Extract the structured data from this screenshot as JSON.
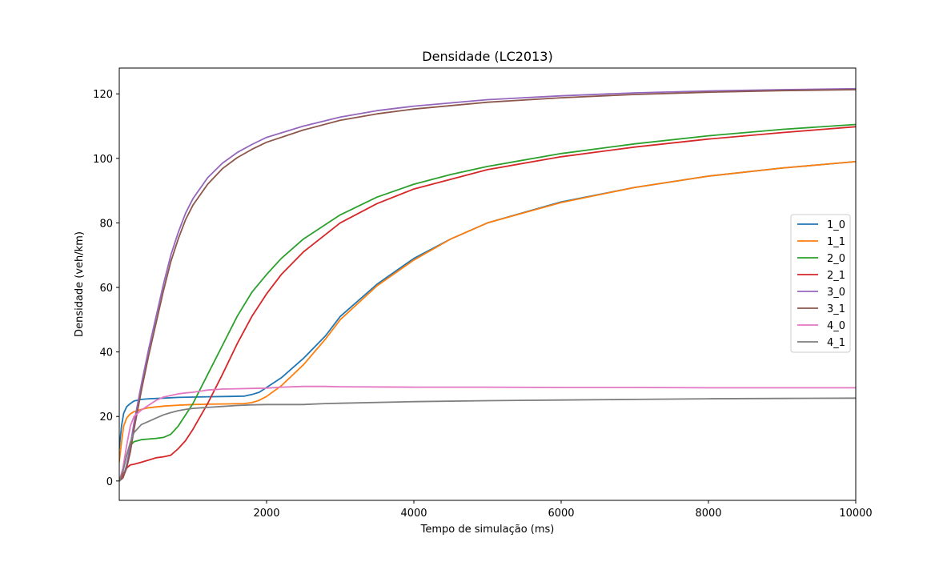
{
  "chart_data": {
    "type": "line",
    "title": "Densidade (LC2013)",
    "xlabel": "Tempo de simulação (ms)",
    "ylabel": "Densidade (veh/km)",
    "xlim": [
      0,
      10000
    ],
    "ylim": [
      -6,
      128
    ],
    "xticks": [
      2000,
      4000,
      6000,
      8000,
      10000
    ],
    "xtick_labels": [
      "2000",
      "4000",
      "6000",
      "8000",
      "10000"
    ],
    "yticks": [
      0,
      20,
      40,
      60,
      80,
      100,
      120
    ],
    "ytick_labels": [
      "0",
      "20",
      "40",
      "60",
      "80",
      "100",
      "120"
    ],
    "grid": false,
    "legend_position": "center-right",
    "series": [
      {
        "name": "1_0",
        "color": "#1f77b4",
        "x": [
          0,
          30,
          60,
          100,
          150,
          200,
          300,
          400,
          600,
          800,
          1000,
          1200,
          1500,
          1700,
          1800,
          1900,
          2000,
          2200,
          2500,
          2800,
          3000,
          3500,
          4000,
          4500,
          5000,
          6000,
          7000,
          8000,
          9000,
          10000
        ],
        "y": [
          10,
          17,
          21,
          23,
          24,
          24.8,
          25.3,
          25.5,
          25.7,
          25.9,
          26,
          26.1,
          26.2,
          26.3,
          26.8,
          27.5,
          29,
          32,
          38,
          45,
          51,
          61,
          69,
          75,
          80,
          86.5,
          91,
          94.5,
          97,
          99
        ]
      },
      {
        "name": "1_1",
        "color": "#ff7f0e",
        "x": [
          0,
          30,
          60,
          100,
          150,
          200,
          300,
          400,
          600,
          800,
          1000,
          1200,
          1500,
          1700,
          1800,
          1900,
          2000,
          2200,
          2500,
          2800,
          3000,
          3500,
          4000,
          4500,
          5000,
          6000,
          7000,
          8000,
          9000,
          10000
        ],
        "y": [
          6,
          12,
          17,
          19.5,
          20.8,
          21.5,
          22.2,
          22.7,
          23.2,
          23.5,
          23.7,
          23.8,
          23.9,
          24,
          24.3,
          25,
          26.2,
          29.5,
          36,
          44,
          50,
          60.5,
          68.5,
          75,
          80,
          86.3,
          91,
          94.5,
          97,
          99
        ]
      },
      {
        "name": "2_0",
        "color": "#2ca02c",
        "x": [
          0,
          50,
          100,
          150,
          200,
          300,
          400,
          500,
          600,
          700,
          800,
          900,
          1000,
          1200,
          1400,
          1600,
          1800,
          2000,
          2200,
          2500,
          3000,
          3500,
          4000,
          4500,
          5000,
          6000,
          7000,
          8000,
          9000,
          10000
        ],
        "y": [
          0,
          3,
          8,
          11,
          12.2,
          12.8,
          13,
          13.2,
          13.5,
          14.5,
          17,
          20.5,
          24,
          33,
          42,
          51,
          58.5,
          64,
          69,
          75,
          82.5,
          88,
          92,
          95,
          97.5,
          101.5,
          104.5,
          107,
          109,
          110.5
        ]
      },
      {
        "name": "2_1",
        "color": "#d62728",
        "x": [
          0,
          50,
          100,
          150,
          200,
          300,
          400,
          500,
          600,
          700,
          800,
          900,
          1000,
          1200,
          1400,
          1600,
          1800,
          2000,
          2200,
          2500,
          3000,
          3500,
          4000,
          4500,
          5000,
          6000,
          7000,
          8000,
          9000,
          10000
        ],
        "y": [
          0,
          2,
          4,
          5,
          5.2,
          5.8,
          6.5,
          7.2,
          7.5,
          8,
          10,
          12.5,
          16,
          24,
          33,
          42.5,
          51,
          58,
          64,
          71,
          80,
          86,
          90.5,
          93.5,
          96.5,
          100.5,
          103.5,
          106,
          108,
          109.8
        ]
      },
      {
        "name": "3_0",
        "color": "#9467bd",
        "x": [
          0,
          50,
          100,
          150,
          200,
          300,
          400,
          500,
          600,
          700,
          800,
          900,
          1000,
          1200,
          1400,
          1600,
          1800,
          2000,
          2500,
          3000,
          3500,
          4000,
          5000,
          6000,
          7000,
          8000,
          9000,
          10000
        ],
        "y": [
          0,
          1,
          5,
          11,
          18,
          30,
          41,
          51,
          61,
          70,
          77,
          83,
          87.5,
          94,
          98.5,
          101.8,
          104.3,
          106.5,
          110,
          112.8,
          114.8,
          116.2,
          118.2,
          119.4,
          120.3,
          120.9,
          121.3,
          121.6
        ]
      },
      {
        "name": "3_1",
        "color": "#8c564b",
        "x": [
          0,
          50,
          100,
          150,
          200,
          300,
          400,
          500,
          600,
          700,
          800,
          900,
          1000,
          1200,
          1400,
          1600,
          1800,
          2000,
          2500,
          3000,
          3500,
          4000,
          5000,
          6000,
          7000,
          8000,
          9000,
          10000
        ],
        "y": [
          0,
          1,
          4,
          9,
          16,
          28,
          39,
          49,
          59,
          68,
          75,
          81,
          85.5,
          92,
          96.8,
          100.2,
          102.8,
          105,
          108.8,
          111.8,
          113.8,
          115.3,
          117.4,
          118.8,
          119.8,
          120.5,
          121,
          121.3
        ]
      },
      {
        "name": "4_0",
        "color": "#e377c2",
        "x": [
          0,
          50,
          100,
          150,
          200,
          300,
          400,
          500,
          600,
          700,
          800,
          900,
          1000,
          1200,
          1400,
          1600,
          1800,
          2000,
          2200,
          2500,
          2800,
          3000,
          4000,
          5000,
          6000,
          7000,
          8000,
          9000,
          10000
        ],
        "y": [
          0,
          4,
          11,
          17,
          20,
          22,
          23.5,
          25,
          26,
          26.5,
          27,
          27.3,
          27.5,
          28.2,
          28.5,
          28.6,
          28.7,
          28.8,
          29.1,
          29.3,
          29.3,
          29.2,
          29.1,
          29.1,
          29,
          29,
          28.9,
          28.9,
          28.9
        ]
      },
      {
        "name": "4_1",
        "color": "#7f7f7f",
        "x": [
          0,
          50,
          100,
          150,
          200,
          300,
          400,
          500,
          600,
          700,
          800,
          900,
          1000,
          1200,
          1400,
          1600,
          1800,
          2000,
          2200,
          2500,
          2800,
          3000,
          4000,
          5000,
          6000,
          7000,
          8000,
          9000,
          10000
        ],
        "y": [
          0,
          3,
          8,
          12,
          15,
          17.5,
          18.5,
          19.5,
          20.5,
          21.2,
          21.8,
          22.2,
          22.5,
          22.8,
          23.1,
          23.4,
          23.6,
          23.7,
          23.7,
          23.7,
          24,
          24.1,
          24.6,
          24.9,
          25.1,
          25.3,
          25.5,
          25.6,
          25.7
        ]
      }
    ]
  }
}
